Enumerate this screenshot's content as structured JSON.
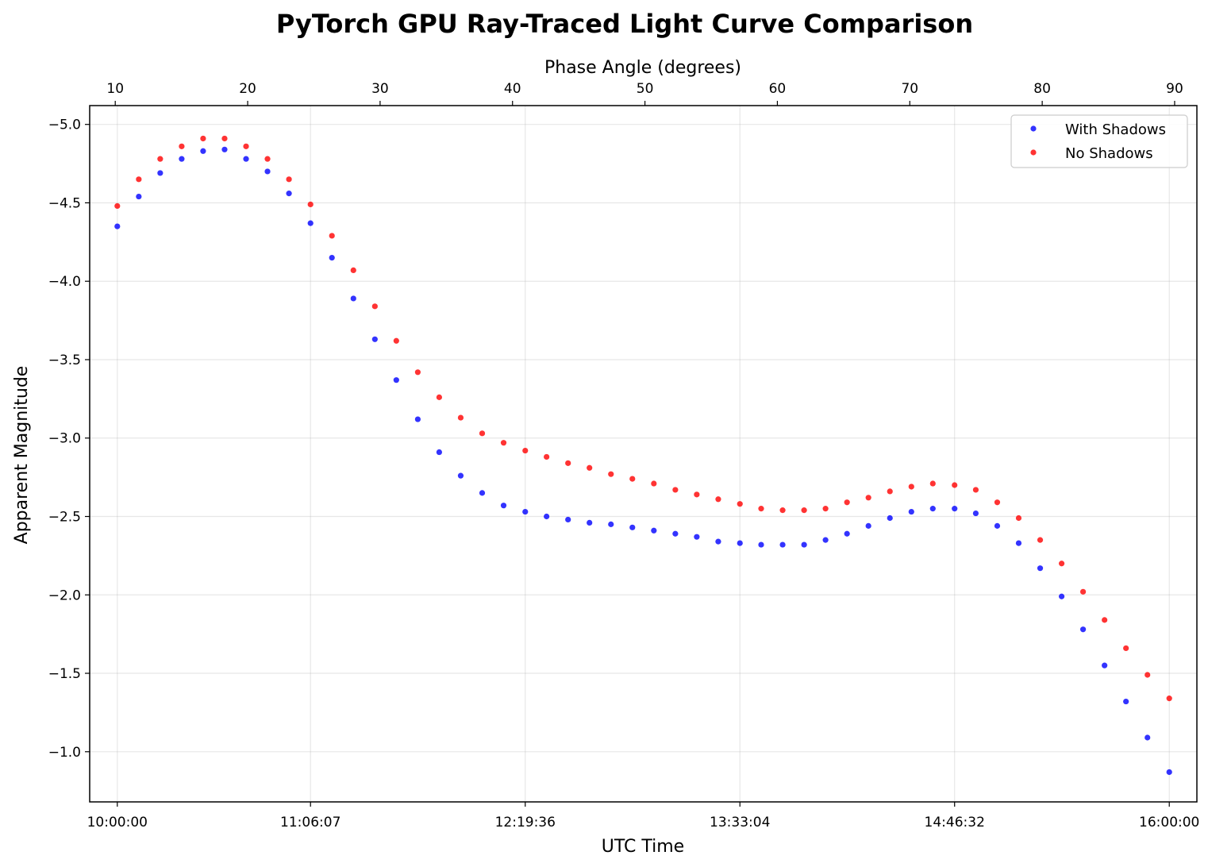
{
  "chart_data": {
    "type": "scatter",
    "title": "PyTorch GPU Ray-Traced Light Curve Comparison",
    "xlabel": "UTC Time",
    "ylabel": "Apparent Magnitude",
    "secondary_xlabel": "Phase Angle (degrees)",
    "y_inverted": true,
    "ylim": [
      -0.68,
      -5.12
    ],
    "yticks": [
      -5.0,
      -4.5,
      -4.0,
      -3.5,
      -3.0,
      -2.5,
      -2.0,
      -1.5,
      -1.0
    ],
    "ytick_labels": [
      "−5.0",
      "−4.5",
      "−4.0",
      "−3.5",
      "−3.0",
      "−2.5",
      "−2.0",
      "−1.5",
      "−1.0"
    ],
    "xlim": [
      "09:50:33",
      "16:09:27"
    ],
    "xticks": [
      "10:00:00",
      "11:06:07",
      "12:19:36",
      "13:33:04",
      "14:46:32",
      "16:00:00"
    ],
    "secondary_xlim": [
      8.07,
      91.68
    ],
    "secondary_xticks": [
      10,
      20,
      30,
      40,
      50,
      60,
      70,
      80,
      90
    ],
    "grid": true,
    "legend_position": "top-right",
    "x": [
      "10:00:00",
      "10:07:21",
      "10:14:41",
      "10:22:02",
      "10:29:22",
      "10:36:43",
      "10:44:04",
      "10:51:24",
      "10:58:45",
      "11:06:07",
      "11:13:27",
      "11:20:48",
      "11:28:09",
      "11:35:29",
      "11:42:50",
      "11:50:10",
      "11:57:31",
      "12:04:52",
      "12:12:12",
      "12:19:36",
      "12:26:54",
      "12:34:15",
      "12:41:35",
      "12:48:56",
      "12:56:16",
      "13:03:37",
      "13:10:58",
      "13:18:18",
      "13:25:39",
      "13:33:04",
      "13:40:20",
      "13:47:41",
      "13:55:02",
      "14:02:22",
      "14:09:43",
      "14:17:03",
      "14:24:24",
      "14:31:45",
      "14:39:05",
      "14:46:32",
      "14:53:47",
      "15:01:08",
      "15:08:28",
      "15:15:49",
      "15:23:10",
      "15:30:30",
      "15:37:51",
      "15:45:11",
      "15:52:32",
      "16:00:00"
    ],
    "series": [
      {
        "name": "With Shadows",
        "color": "#0000ff",
        "values": [
          -4.35,
          -4.54,
          -4.69,
          -4.78,
          -4.83,
          -4.84,
          -4.78,
          -4.7,
          -4.56,
          -4.37,
          -4.15,
          -3.89,
          -3.63,
          -3.37,
          -3.12,
          -2.91,
          -2.76,
          -2.65,
          -2.57,
          -2.53,
          -2.5,
          -2.48,
          -2.46,
          -2.45,
          -2.43,
          -2.41,
          -2.39,
          -2.37,
          -2.34,
          -2.33,
          -2.32,
          -2.32,
          -2.32,
          -2.35,
          -2.39,
          -2.44,
          -2.49,
          -2.53,
          -2.55,
          -2.55,
          -2.52,
          -2.44,
          -2.33,
          -2.17,
          -1.99,
          -1.78,
          -1.55,
          -1.32,
          -1.09,
          -0.87
        ]
      },
      {
        "name": "No Shadows",
        "color": "#ff0000",
        "values": [
          -4.48,
          -4.65,
          -4.78,
          -4.86,
          -4.91,
          -4.91,
          -4.86,
          -4.78,
          -4.65,
          -4.49,
          -4.29,
          -4.07,
          -3.84,
          -3.62,
          -3.42,
          -3.26,
          -3.13,
          -3.03,
          -2.97,
          -2.92,
          -2.88,
          -2.84,
          -2.81,
          -2.77,
          -2.74,
          -2.71,
          -2.67,
          -2.64,
          -2.61,
          -2.58,
          -2.55,
          -2.54,
          -2.54,
          -2.55,
          -2.59,
          -2.62,
          -2.66,
          -2.69,
          -2.71,
          -2.7,
          -2.67,
          -2.59,
          -2.49,
          -2.35,
          -2.2,
          -2.02,
          -1.84,
          -1.66,
          -1.49,
          -1.34
        ]
      }
    ]
  }
}
